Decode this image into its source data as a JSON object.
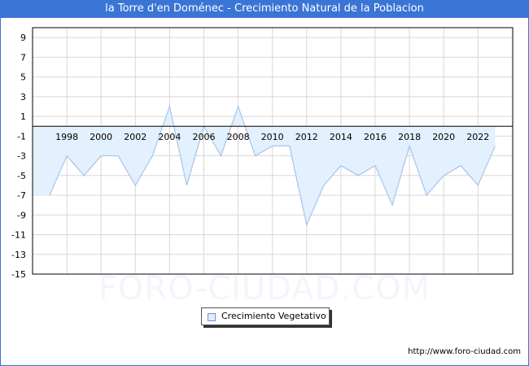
{
  "header": {
    "title": "la Torre d'en Doménec - Crecimiento Natural de la Poblacion"
  },
  "legend": {
    "label": "Crecimiento Vegetativo"
  },
  "footer": {
    "url": "http://www.foro-ciudad.com"
  },
  "watermark": "FORO-CIUDAD.COM",
  "colors": {
    "title_bg": "#3a75d6",
    "area_fill": "#e3f0fd",
    "line": "#a8c4ec",
    "grid": "#d8d8d8"
  },
  "chart_data": {
    "type": "area",
    "title": "la Torre d'en Doménec - Crecimiento Natural de la Poblacion",
    "xlabel": "",
    "ylabel": "",
    "x": [
      1996,
      1997,
      1998,
      1999,
      2000,
      2001,
      2002,
      2003,
      2004,
      2005,
      2006,
      2007,
      2008,
      2009,
      2010,
      2011,
      2012,
      2013,
      2014,
      2015,
      2016,
      2017,
      2018,
      2019,
      2020,
      2021,
      2022,
      2023
    ],
    "series": [
      {
        "name": "Crecimiento Vegetativo",
        "values": [
          -7,
          -7,
          -3,
          -5,
          -3,
          -3,
          -6,
          -3,
          2,
          -6,
          0,
          -3,
          2,
          -3,
          -2,
          -2,
          -10,
          -6,
          -4,
          -5,
          -4,
          -8,
          -2,
          -7,
          -5,
          -4,
          -6,
          -2
        ]
      }
    ],
    "x_tick_labels": [
      "1998",
      "2000",
      "2002",
      "2004",
      "2006",
      "2008",
      "2010",
      "2012",
      "2014",
      "2016",
      "2018",
      "2020",
      "2022"
    ],
    "y_tick_labels": [
      "9",
      "7",
      "5",
      "3",
      "1",
      "-1",
      "-3",
      "-5",
      "-7",
      "-9",
      "-11",
      "-13",
      "-15"
    ],
    "ylim": [
      -15,
      10
    ],
    "xlim": [
      1996,
      2024.5
    ],
    "grid": true,
    "legend_position": "bottom-center"
  }
}
